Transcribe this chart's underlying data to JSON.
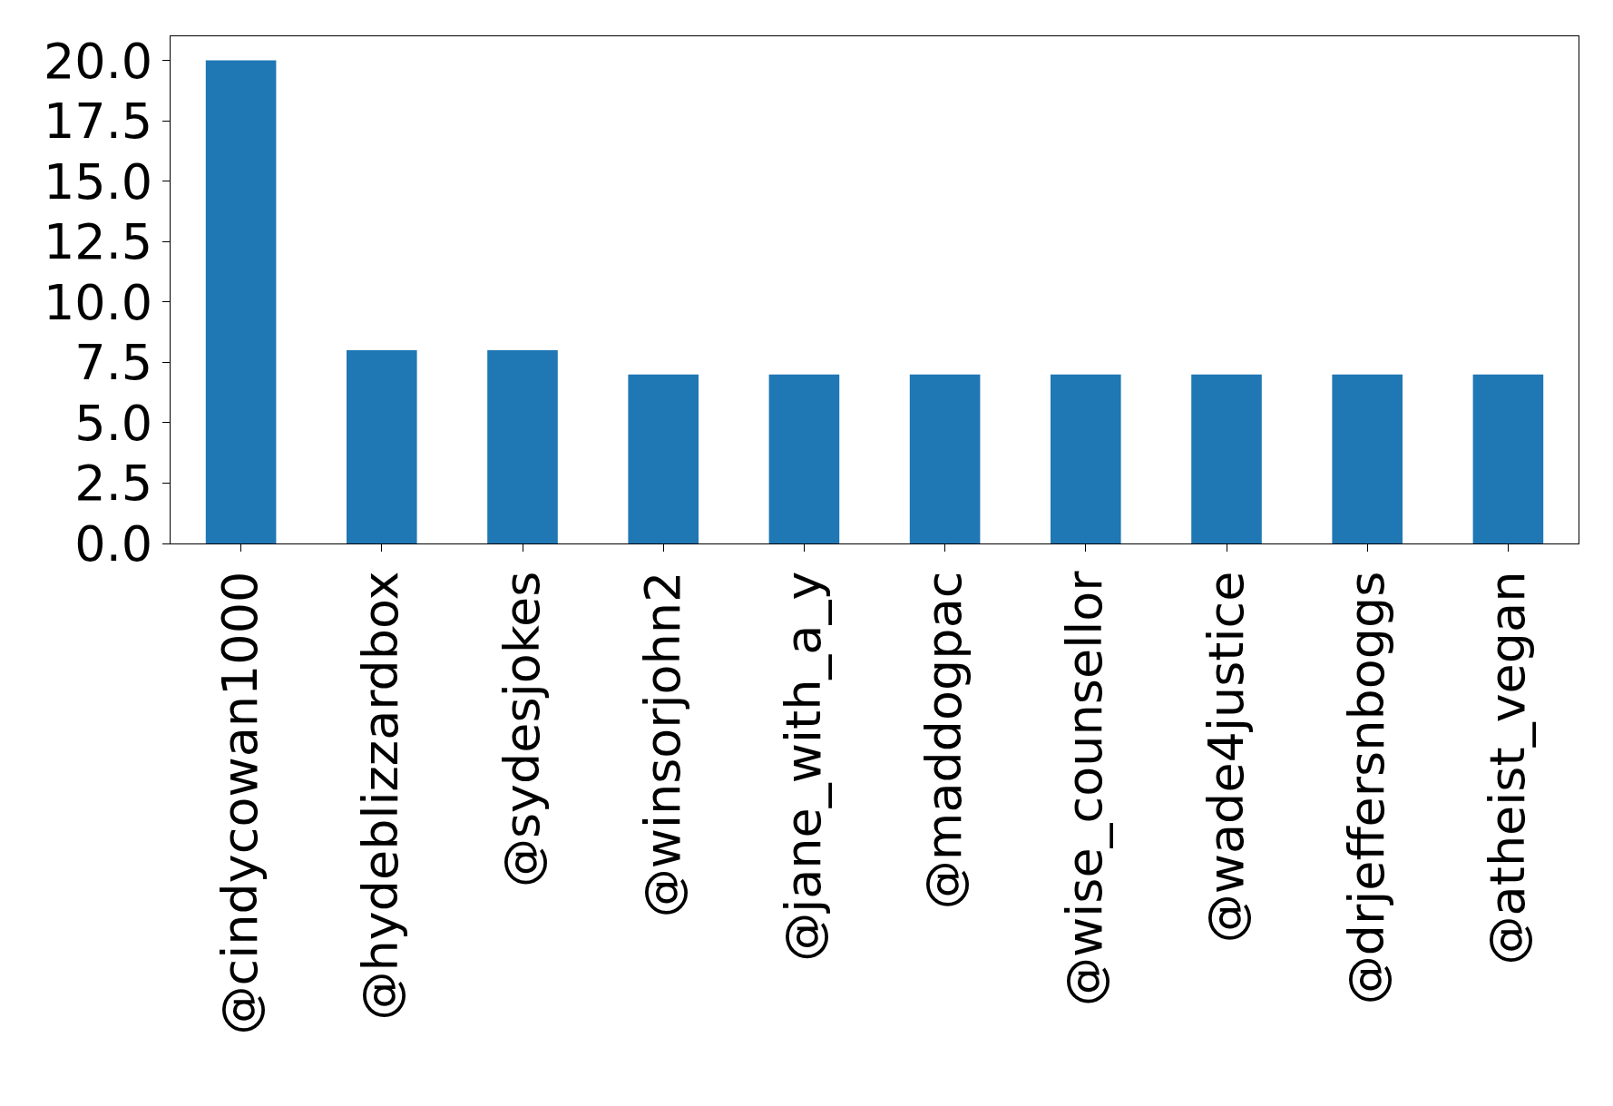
{
  "chart_data": {
    "type": "bar",
    "categories": [
      "@cindycowan1000",
      "@hydeblizzardbox",
      "@sydesjokes",
      "@winsorjohn2",
      "@jane_with_a_y",
      "@maddogpac",
      "@wise_counsellor",
      "@wade4justice",
      "@drjeffersnboggs",
      "@atheist_vegan"
    ],
    "values": [
      20,
      8,
      8,
      7,
      7,
      7,
      7,
      7,
      7,
      7
    ],
    "color": "#1f77b4",
    "ylim": [
      0,
      21
    ],
    "yticks": [
      {
        "value": 0,
        "label": "0.0"
      },
      {
        "value": 2.5,
        "label": "2.5"
      },
      {
        "value": 5,
        "label": "5.0"
      },
      {
        "value": 7.5,
        "label": "7.5"
      },
      {
        "value": 10,
        "label": "10.0"
      },
      {
        "value": 12.5,
        "label": "12.5"
      },
      {
        "value": 15,
        "label": "15.0"
      },
      {
        "value": 17.5,
        "label": "17.5"
      },
      {
        "value": 20,
        "label": "20.0"
      }
    ]
  }
}
